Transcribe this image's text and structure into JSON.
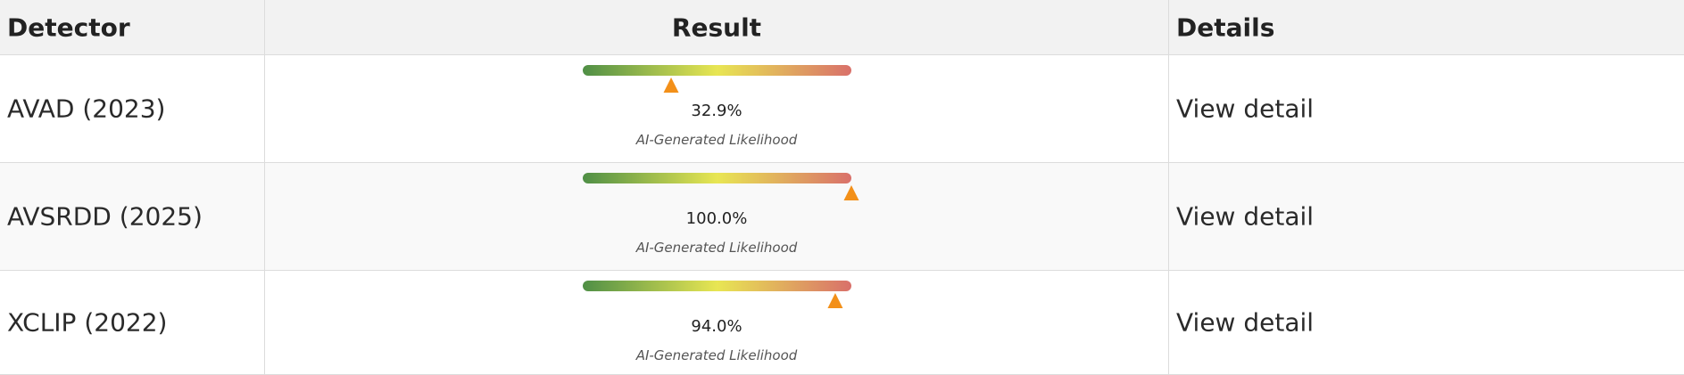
{
  "table": {
    "header": [
      "Detector",
      "Result",
      "Details"
    ],
    "lim": [
      0,
      100
    ],
    "rows": [
      {
        "detector": "AVAD (2023)",
        "value": 32.9,
        "value_label": "32.9%",
        "caption": "AI-Generated Likelihood",
        "details": "View detail"
      },
      {
        "detector": "AVSRDD (2025)",
        "value": 100.0,
        "value_label": "100.0%",
        "caption": "AI-Generated Likelihood",
        "details": "View detail"
      },
      {
        "detector": "XCLIP (2022)",
        "value": 94.0,
        "value_label": "94.0%",
        "caption": "AI-Generated Likelihood",
        "details": "View detail"
      }
    ]
  }
}
